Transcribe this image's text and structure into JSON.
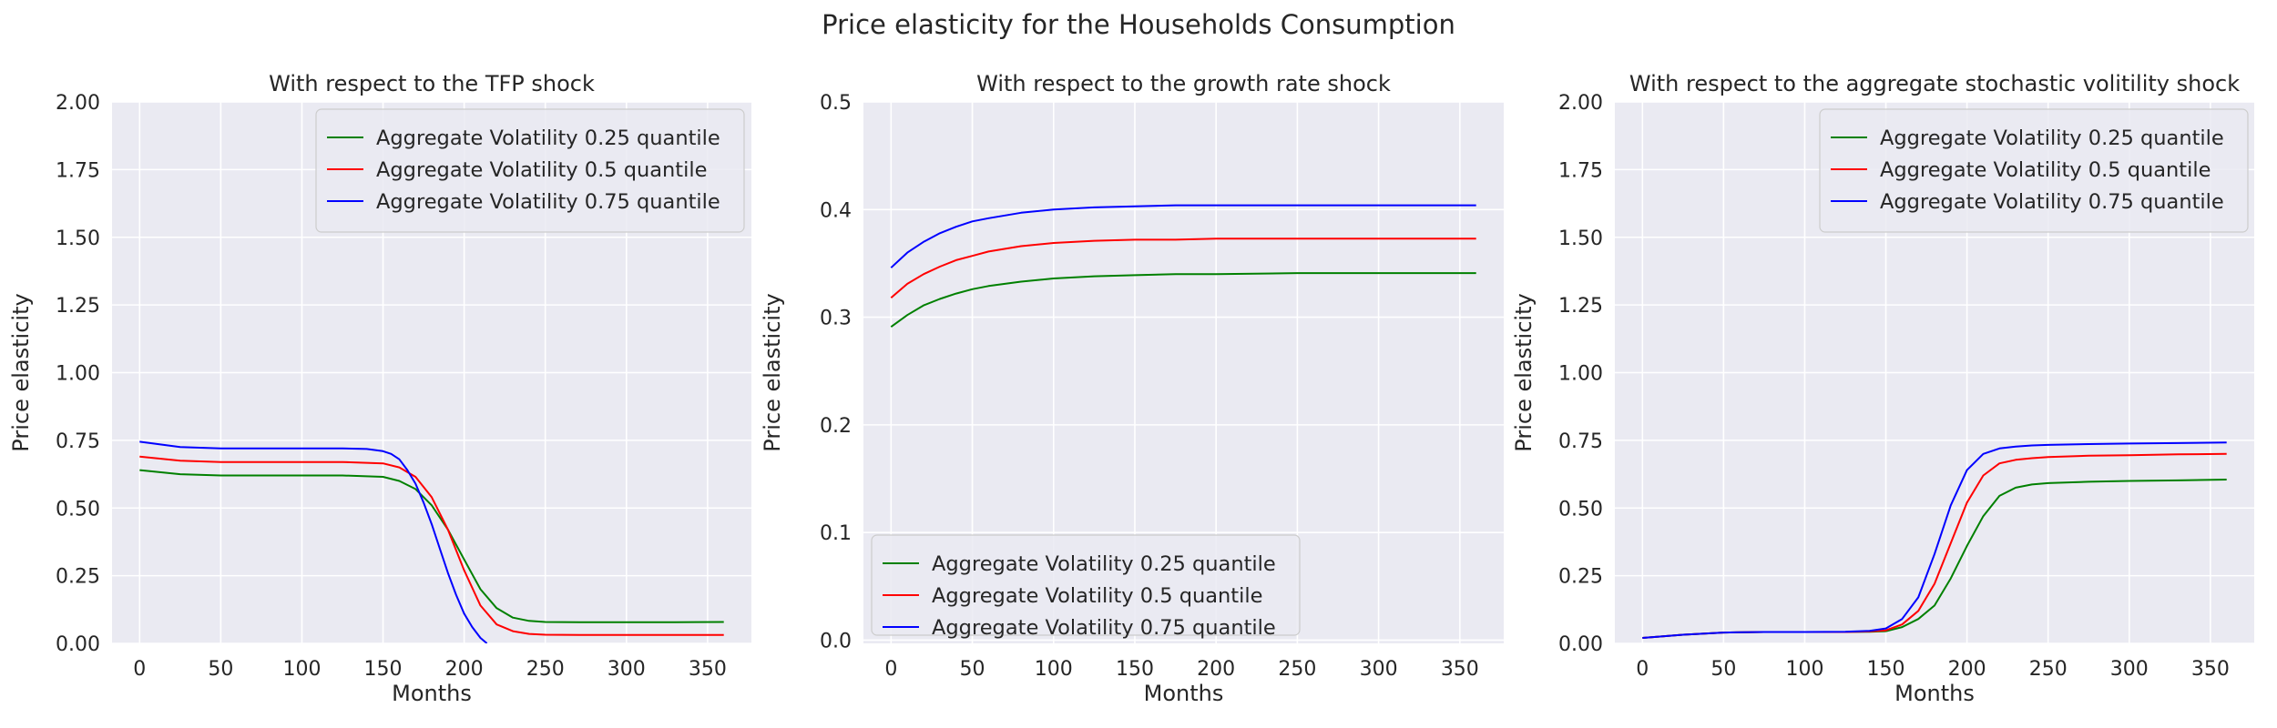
{
  "suptitle": "Price elasticity for the Households Consumption",
  "colors": {
    "background": "#eaeaf2",
    "grid": "#ffffff",
    "series": [
      "#008000",
      "#ff0000",
      "#0000ff"
    ]
  },
  "chart_data": [
    {
      "type": "line",
      "title": "With respect to the TFP shock",
      "xlabel": "Months",
      "ylabel": "Price elasticity",
      "xlim": [
        -17,
        377
      ],
      "ylim": [
        0,
        2
      ],
      "xticks": [
        0,
        50,
        100,
        150,
        200,
        250,
        300,
        350
      ],
      "yticks": [
        0.0,
        0.25,
        0.5,
        0.75,
        1.0,
        1.25,
        1.5,
        1.75,
        2.0
      ],
      "ytick_labels": [
        "0.00",
        "0.25",
        "0.50",
        "0.75",
        "1.00",
        "1.25",
        "1.50",
        "1.75",
        "2.00"
      ],
      "grid": true,
      "legend": "top-right",
      "series": [
        {
          "name": "Aggregate Volatility 0.25 quantile",
          "color": "#008000",
          "x": [
            0,
            25,
            50,
            75,
            100,
            125,
            150,
            160,
            170,
            180,
            190,
            200,
            210,
            220,
            230,
            240,
            250,
            275,
            300,
            330,
            360
          ],
          "values": [
            0.64,
            0.625,
            0.62,
            0.62,
            0.62,
            0.62,
            0.615,
            0.6,
            0.57,
            0.51,
            0.42,
            0.31,
            0.2,
            0.13,
            0.095,
            0.083,
            0.079,
            0.078,
            0.078,
            0.078,
            0.079
          ]
        },
        {
          "name": "Aggregate Volatility 0.5 quantile",
          "color": "#ff0000",
          "x": [
            0,
            25,
            50,
            75,
            100,
            125,
            150,
            160,
            170,
            180,
            190,
            200,
            210,
            220,
            230,
            240,
            250,
            275,
            300,
            330,
            360
          ],
          "values": [
            0.69,
            0.675,
            0.67,
            0.67,
            0.67,
            0.67,
            0.665,
            0.65,
            0.615,
            0.54,
            0.42,
            0.27,
            0.14,
            0.07,
            0.045,
            0.035,
            0.032,
            0.031,
            0.031,
            0.031,
            0.031
          ]
        },
        {
          "name": "Aggregate Volatility 0.75 quantile",
          "color": "#0000ff",
          "x": [
            0,
            25,
            50,
            75,
            100,
            125,
            140,
            150,
            155,
            160,
            165,
            170,
            175,
            180,
            185,
            190,
            195,
            200,
            205,
            210,
            214
          ],
          "values": [
            0.745,
            0.725,
            0.72,
            0.72,
            0.72,
            0.72,
            0.718,
            0.71,
            0.7,
            0.68,
            0.64,
            0.59,
            0.52,
            0.44,
            0.35,
            0.26,
            0.18,
            0.11,
            0.06,
            0.02,
            0.0
          ]
        }
      ]
    },
    {
      "type": "line",
      "title": "With respect to the growth rate shock",
      "xlabel": "Months",
      "ylabel": "Price elasticity",
      "xlim": [
        -17,
        377
      ],
      "ylim": [
        -0.003,
        0.5
      ],
      "xticks": [
        0,
        50,
        100,
        150,
        200,
        250,
        300,
        350
      ],
      "yticks": [
        0.0,
        0.1,
        0.2,
        0.3,
        0.4,
        0.5
      ],
      "ytick_labels": [
        "0.0",
        "0.1",
        "0.2",
        "0.3",
        "0.4",
        "0.5"
      ],
      "grid": true,
      "legend": "bottom-left",
      "series": [
        {
          "name": "Aggregate Volatility 0.25 quantile",
          "color": "#008000",
          "x": [
            0,
            10,
            20,
            30,
            40,
            50,
            60,
            80,
            100,
            125,
            150,
            175,
            200,
            250,
            300,
            360
          ],
          "values": [
            0.291,
            0.302,
            0.311,
            0.317,
            0.322,
            0.326,
            0.329,
            0.333,
            0.336,
            0.338,
            0.339,
            0.34,
            0.34,
            0.341,
            0.341,
            0.341
          ]
        },
        {
          "name": "Aggregate Volatility 0.5 quantile",
          "color": "#ff0000",
          "x": [
            0,
            10,
            20,
            30,
            40,
            50,
            60,
            80,
            100,
            125,
            150,
            175,
            200,
            250,
            300,
            360
          ],
          "values": [
            0.318,
            0.331,
            0.34,
            0.347,
            0.353,
            0.357,
            0.361,
            0.366,
            0.369,
            0.371,
            0.372,
            0.372,
            0.373,
            0.373,
            0.373,
            0.373
          ]
        },
        {
          "name": "Aggregate Volatility 0.75 quantile",
          "color": "#0000ff",
          "x": [
            0,
            10,
            20,
            30,
            40,
            50,
            60,
            80,
            100,
            125,
            150,
            175,
            200,
            250,
            300,
            360
          ],
          "values": [
            0.346,
            0.36,
            0.37,
            0.378,
            0.384,
            0.389,
            0.392,
            0.397,
            0.4,
            0.402,
            0.403,
            0.404,
            0.404,
            0.404,
            0.404,
            0.404
          ]
        }
      ]
    },
    {
      "type": "line",
      "title": "With respect to the aggregate stochastic volitility shock",
      "xlabel": "Months",
      "ylabel": "Price elasticity",
      "xlim": [
        -17,
        377
      ],
      "ylim": [
        0,
        2
      ],
      "xticks": [
        0,
        50,
        100,
        150,
        200,
        250,
        300,
        350
      ],
      "yticks": [
        0.0,
        0.25,
        0.5,
        0.75,
        1.0,
        1.25,
        1.5,
        1.75,
        2.0
      ],
      "ytick_labels": [
        "0.00",
        "0.25",
        "0.50",
        "0.75",
        "1.00",
        "1.25",
        "1.50",
        "1.75",
        "2.00"
      ],
      "grid": true,
      "legend": "top-right",
      "series": [
        {
          "name": "Aggregate Volatility 0.25 quantile",
          "color": "#008000",
          "x": [
            0,
            10,
            25,
            50,
            75,
            100,
            125,
            140,
            150,
            160,
            170,
            180,
            190,
            200,
            210,
            220,
            230,
            240,
            250,
            275,
            300,
            330,
            360
          ],
          "values": [
            0.02,
            0.025,
            0.032,
            0.04,
            0.042,
            0.042,
            0.042,
            0.043,
            0.045,
            0.06,
            0.09,
            0.14,
            0.24,
            0.36,
            0.47,
            0.545,
            0.575,
            0.587,
            0.592,
            0.597,
            0.6,
            0.602,
            0.605
          ]
        },
        {
          "name": "Aggregate Volatility 0.5 quantile",
          "color": "#ff0000",
          "x": [
            0,
            10,
            25,
            50,
            75,
            100,
            125,
            140,
            150,
            160,
            170,
            180,
            190,
            200,
            210,
            220,
            230,
            240,
            250,
            275,
            300,
            330,
            360
          ],
          "values": [
            0.02,
            0.025,
            0.032,
            0.04,
            0.042,
            0.042,
            0.042,
            0.044,
            0.048,
            0.07,
            0.12,
            0.22,
            0.37,
            0.52,
            0.62,
            0.665,
            0.678,
            0.684,
            0.688,
            0.693,
            0.695,
            0.698,
            0.7
          ]
        },
        {
          "name": "Aggregate Volatility 0.75 quantile",
          "color": "#0000ff",
          "x": [
            0,
            10,
            25,
            50,
            75,
            100,
            125,
            140,
            150,
            160,
            170,
            180,
            190,
            200,
            210,
            220,
            230,
            240,
            250,
            275,
            300,
            330,
            360
          ],
          "values": [
            0.02,
            0.025,
            0.032,
            0.04,
            0.042,
            0.042,
            0.043,
            0.046,
            0.055,
            0.09,
            0.17,
            0.33,
            0.51,
            0.64,
            0.7,
            0.72,
            0.727,
            0.731,
            0.733,
            0.736,
            0.738,
            0.74,
            0.742
          ]
        }
      ]
    }
  ]
}
